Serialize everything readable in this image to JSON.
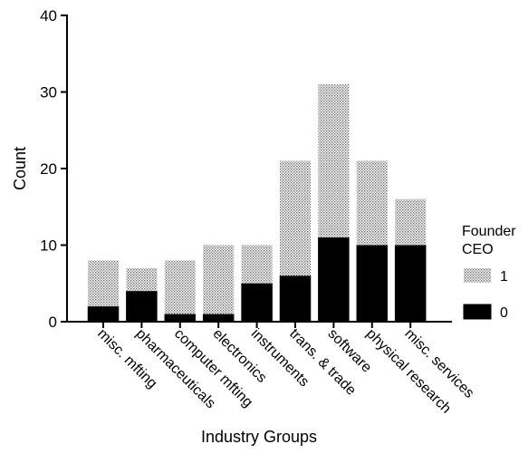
{
  "chart_data": {
    "type": "bar",
    "stacked": true,
    "categories": [
      "misc. mfting",
      "pharmaceuticals",
      "computer mfting",
      "electronics",
      "instruments",
      "trans. & trade",
      "software",
      "physical research",
      "misc. services"
    ],
    "series": [
      {
        "name": "0",
        "pattern": "solid",
        "color": "#000000",
        "values": [
          2,
          4,
          1,
          1,
          5,
          6,
          11,
          10,
          10
        ]
      },
      {
        "name": "1",
        "pattern": "dotted",
        "color": "#9a9a9a",
        "values": [
          6,
          3,
          7,
          9,
          5,
          15,
          20,
          11,
          6
        ]
      }
    ],
    "xlabel": "Industry Groups",
    "ylabel": "Count",
    "ylim": [
      0,
      40
    ],
    "yticks": [
      0,
      10,
      20,
      30,
      40
    ],
    "grid": false,
    "legend": {
      "title_lines": [
        "Founder",
        "CEO"
      ],
      "placement": "right",
      "order": [
        "1",
        "0"
      ]
    }
  }
}
